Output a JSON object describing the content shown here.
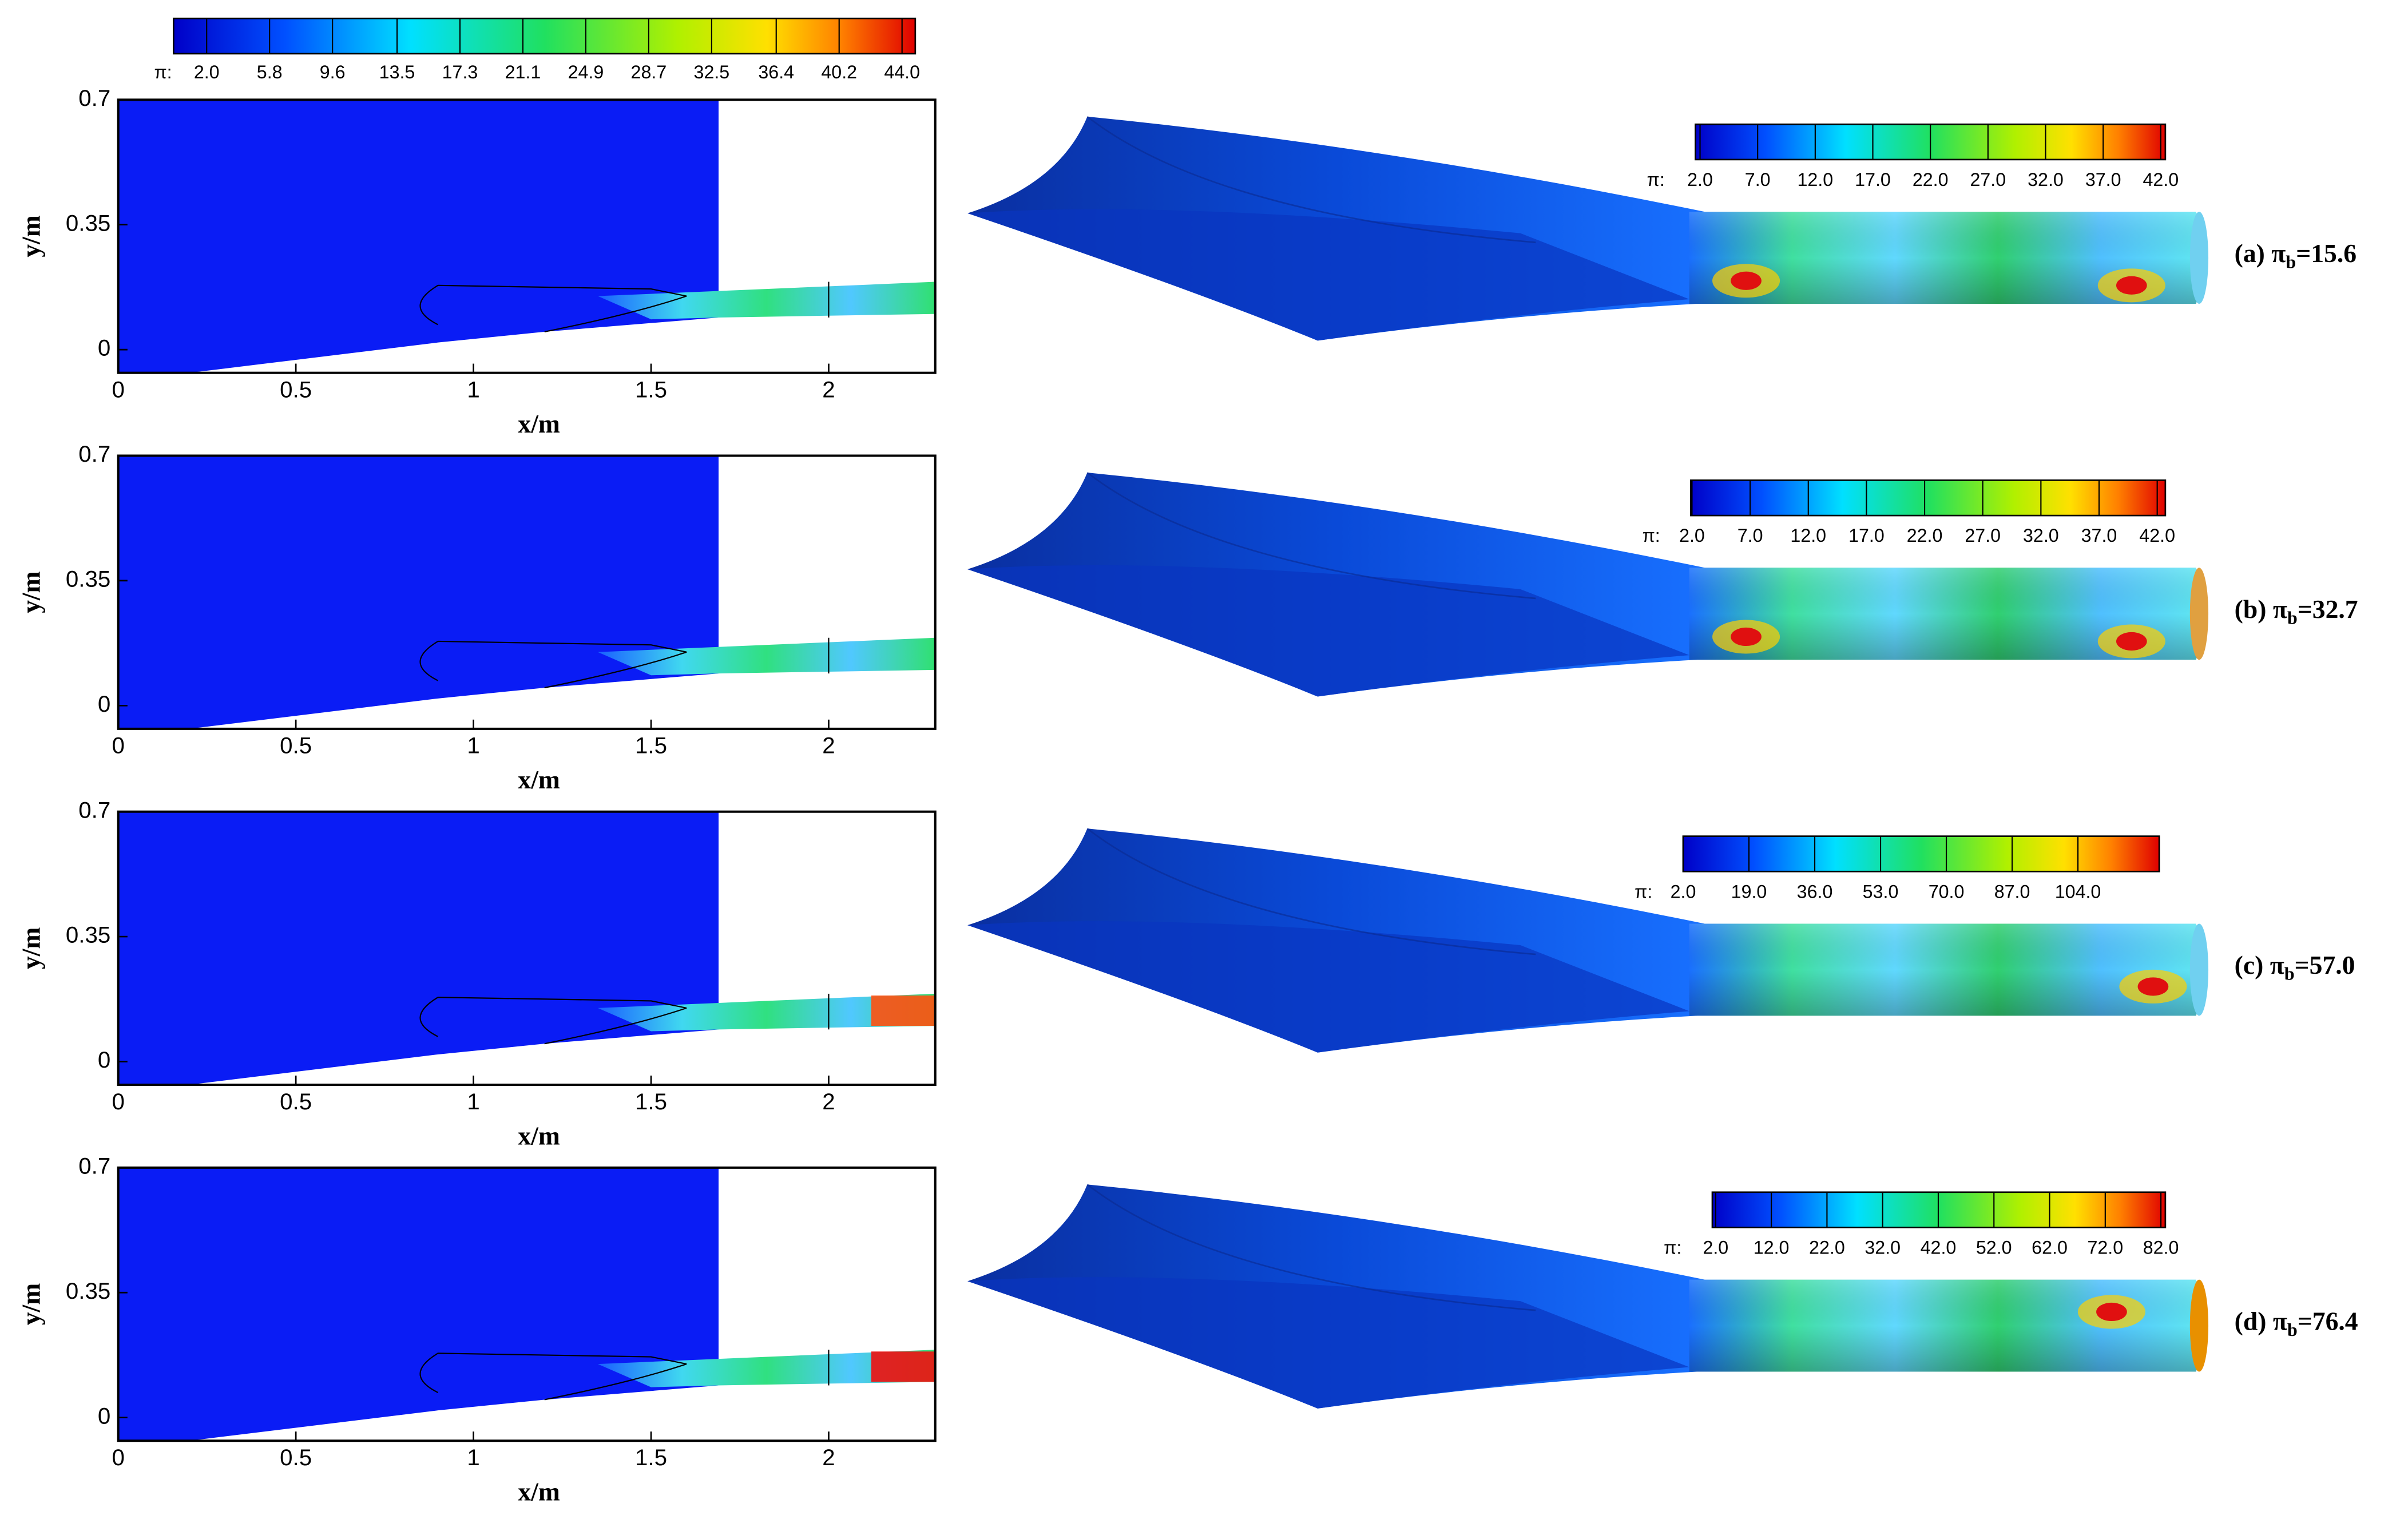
{
  "chart_data": [
    {
      "type": "contour",
      "xlabel": "x/m",
      "ylabel": "y/m",
      "xlim": [
        0,
        2.3
      ],
      "ylim": [
        -0.065,
        0.7
      ],
      "xticks": [
        0,
        0.5,
        1,
        1.5,
        2
      ],
      "yticks": [
        0,
        0.35,
        0.7
      ],
      "colorbar": {
        "label": "π:",
        "clim": [
          0,
          44.8
        ],
        "ticks": [
          {
            "value": 2,
            "label": "2.0"
          },
          {
            "value": 5.8,
            "label": "5.8"
          },
          {
            "value": 9.6,
            "label": "9.6"
          },
          {
            "value": 13.5,
            "label": "13.5"
          },
          {
            "value": 17.3,
            "label": "17.3"
          },
          {
            "value": 21.1,
            "label": "21.1"
          },
          {
            "value": 24.9,
            "label": "24.9"
          },
          {
            "value": 28.7,
            "label": "28.7"
          },
          {
            "value": 32.5,
            "label": "32.5"
          },
          {
            "value": 36.4,
            "label": "36.4"
          },
          {
            "value": 40.2,
            "label": "40.2"
          },
          {
            "value": 44,
            "label": "44.0"
          }
        ]
      },
      "colorbar_3d": {
        "label": "π:",
        "clim": [
          1.6,
          42.4
        ],
        "ticks": [
          {
            "value": 2,
            "label": "2.0"
          },
          {
            "value": 7,
            "label": "7.0"
          },
          {
            "value": 12,
            "label": "12.0"
          },
          {
            "value": 17,
            "label": "17.0"
          },
          {
            "value": 22,
            "label": "22.0"
          },
          {
            "value": 27,
            "label": "27.0"
          },
          {
            "value": 32,
            "label": "32.0"
          },
          {
            "value": 37,
            "label": "37.0"
          },
          {
            "value": 42,
            "label": "42.0"
          }
        ]
      },
      "annotation": {
        "prefix": "(a) π",
        "sub": "b",
        "suffix": "=15.6"
      }
    },
    {
      "type": "contour",
      "xlabel": "x/m",
      "ylabel": "y/m",
      "xlim": [
        0,
        2.3
      ],
      "ylim": [
        -0.065,
        0.7
      ],
      "xticks": [
        0,
        0.5,
        1,
        1.5,
        2
      ],
      "yticks": [
        0,
        0.35,
        0.7
      ],
      "colorbar_3d": {
        "label": "π:",
        "clim": [
          1.9,
          42.7
        ],
        "ticks": [
          {
            "value": 2,
            "label": "2.0"
          },
          {
            "value": 7,
            "label": "7.0"
          },
          {
            "value": 12,
            "label": "12.0"
          },
          {
            "value": 17,
            "label": "17.0"
          },
          {
            "value": 22,
            "label": "22.0"
          },
          {
            "value": 27,
            "label": "27.0"
          },
          {
            "value": 32,
            "label": "32.0"
          },
          {
            "value": 37,
            "label": "37.0"
          },
          {
            "value": 42,
            "label": "42.0"
          }
        ]
      },
      "annotation": {
        "prefix": "(b) π",
        "sub": "b",
        "suffix": "=32.7"
      }
    },
    {
      "type": "contour",
      "xlabel": "x/m",
      "ylabel": "y/m",
      "xlim": [
        0,
        2.3
      ],
      "ylim": [
        -0.065,
        0.7
      ],
      "xticks": [
        0,
        0.5,
        1,
        1.5,
        2
      ],
      "yticks": [
        0,
        0.35,
        0.7
      ],
      "colorbar_3d": {
        "label": "π:",
        "clim": [
          2,
          125
        ],
        "ticks": [
          {
            "value": 2,
            "label": "2.0"
          },
          {
            "value": 19,
            "label": "19.0"
          },
          {
            "value": 36,
            "label": "36.0"
          },
          {
            "value": 53,
            "label": "53.0"
          },
          {
            "value": 70,
            "label": "70.0"
          },
          {
            "value": 87,
            "label": "87.0"
          },
          {
            "value": 104,
            "label": "104.0"
          }
        ]
      },
      "annotation": {
        "prefix": "(c) π",
        "sub": "b",
        "suffix": "=57.0"
      }
    },
    {
      "type": "contour",
      "xlabel": "x/m",
      "ylabel": "y/m",
      "xlim": [
        0,
        2.3
      ],
      "ylim": [
        -0.065,
        0.7
      ],
      "xticks": [
        0,
        0.5,
        1,
        1.5,
        2
      ],
      "yticks": [
        0,
        0.35,
        0.7
      ],
      "colorbar_3d": {
        "label": "π:",
        "clim": [
          1.4,
          82.8
        ],
        "ticks": [
          {
            "value": 2,
            "label": "2.0"
          },
          {
            "value": 12,
            "label": "12.0"
          },
          {
            "value": 22,
            "label": "22.0"
          },
          {
            "value": 32,
            "label": "32.0"
          },
          {
            "value": 42,
            "label": "42.0"
          },
          {
            "value": 52,
            "label": "52.0"
          },
          {
            "value": 62,
            "label": "62.0"
          },
          {
            "value": 72,
            "label": "72.0"
          },
          {
            "value": 82,
            "label": "82.0"
          }
        ]
      },
      "annotation": {
        "prefix": "(d) π",
        "sub": "b",
        "suffix": "=76.4"
      }
    }
  ]
}
